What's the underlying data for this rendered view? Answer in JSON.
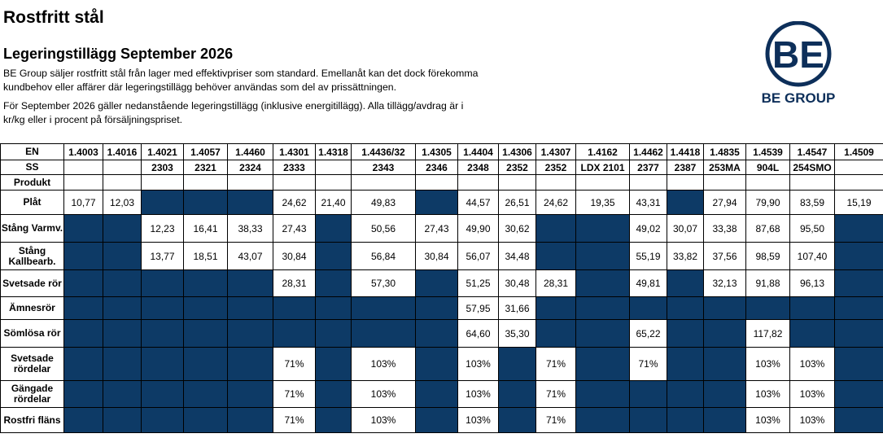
{
  "header": {
    "title": "Rostfritt stål",
    "subtitle": "Legeringstillägg September 2026",
    "paragraph1": "BE Group säljer rostfritt stål från lager med effektivpriser som standard. Emellanåt kan det dock förekomma kundbehov eller affärer där legeringstillägg behöver användas som del av prissättningen.",
    "paragraph2": "För September 2026 gäller nedanstående legeringstillägg (inklusive energitillägg). Alla tillägg/avdrag är i kr/kg eller i procent på försäljningspriset."
  },
  "logo": {
    "mark": "BE",
    "text": "BE GROUP",
    "color": "#0d2f5a"
  },
  "table": {
    "en_label": "EN",
    "ss_label": "SS",
    "produkt_label": "Produkt",
    "en": [
      "1.4003",
      "1.4016",
      "1.4021",
      "1.4057",
      "1.4460",
      "1.4301",
      "1.4318",
      "1.4436/32",
      "1.4305",
      "1.4404",
      "1.4306",
      "1.4307",
      "1.4162",
      "1.4462",
      "1.4418",
      "1.4835",
      "1.4539",
      "1.4547",
      "1.4509"
    ],
    "ss": [
      "",
      "",
      "2303",
      "2321",
      "2324",
      "2333",
      "",
      "2343",
      "2346",
      "2348",
      "2352",
      "2352",
      "LDX 2101",
      "2377",
      "2387",
      "253MA",
      "904L",
      "254SMO",
      ""
    ],
    "dark_color": "#0d3a66",
    "rows": [
      {
        "label": "Plåt",
        "cells": [
          "10,77",
          "12,03",
          null,
          null,
          null,
          "24,62",
          "21,40",
          "49,83",
          null,
          "44,57",
          "26,51",
          "24,62",
          "19,35",
          "43,31",
          null,
          "27,94",
          "79,90",
          "83,59",
          "15,19"
        ]
      },
      {
        "label": "Stång Varmv.",
        "cells": [
          null,
          null,
          "12,23",
          "16,41",
          "38,33",
          "27,43",
          null,
          "50,56",
          "27,43",
          "49,90",
          "30,62",
          null,
          null,
          "49,02",
          "30,07",
          "33,38",
          "87,68",
          "95,50",
          null
        ]
      },
      {
        "label": "Stång Kallbearb.",
        "cells": [
          null,
          null,
          "13,77",
          "18,51",
          "43,07",
          "30,84",
          null,
          "56,84",
          "30,84",
          "56,07",
          "34,48",
          null,
          null,
          "55,19",
          "33,82",
          "37,56",
          "98,59",
          "107,40",
          null
        ]
      },
      {
        "label": "Svetsade rör",
        "cells": [
          null,
          null,
          null,
          null,
          null,
          "28,31",
          null,
          "57,30",
          null,
          "51,25",
          "30,48",
          "28,31",
          null,
          "49,81",
          null,
          "32,13",
          "91,88",
          "96,13",
          null
        ]
      },
      {
        "label": "Ämnesrör",
        "cells": [
          null,
          null,
          null,
          null,
          null,
          null,
          null,
          null,
          null,
          "57,95",
          "31,66",
          null,
          null,
          null,
          null,
          null,
          null,
          null,
          null
        ]
      },
      {
        "label": "Sömlösa rör",
        "cells": [
          null,
          null,
          null,
          null,
          null,
          null,
          null,
          null,
          null,
          "64,60",
          "35,30",
          null,
          null,
          "65,22",
          null,
          null,
          "117,82",
          null,
          null
        ]
      },
      {
        "label": "Svetsade rördelar",
        "cells": [
          null,
          null,
          null,
          null,
          null,
          "71%",
          null,
          "103%",
          null,
          "103%",
          null,
          "71%",
          null,
          "71%",
          null,
          null,
          "103%",
          "103%",
          null
        ]
      },
      {
        "label": "Gängade rördelar",
        "cells": [
          null,
          null,
          null,
          null,
          null,
          "71%",
          null,
          "103%",
          null,
          "103%",
          null,
          "71%",
          null,
          null,
          null,
          null,
          "103%",
          "103%",
          null
        ]
      },
      {
        "label": "Rostfri fläns",
        "cells": [
          null,
          null,
          null,
          null,
          null,
          "71%",
          null,
          "103%",
          null,
          "103%",
          null,
          "71%",
          null,
          null,
          null,
          null,
          "103%",
          "103%",
          null
        ]
      }
    ]
  }
}
